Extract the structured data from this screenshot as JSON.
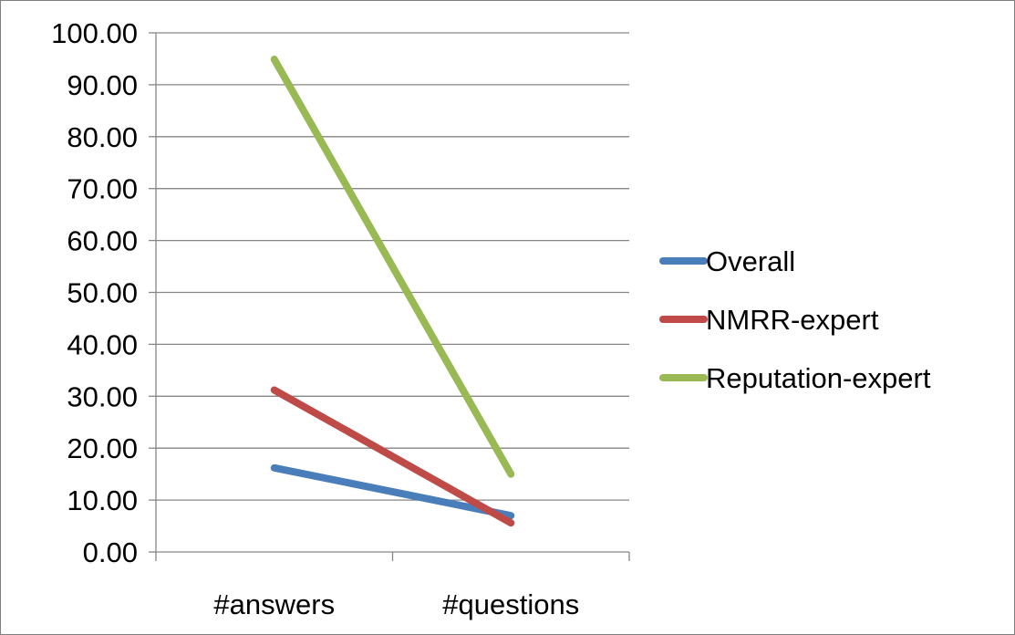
{
  "chart_data": {
    "type": "line",
    "categories": [
      "#answers",
      "#questions"
    ],
    "series": [
      {
        "name": "Overall",
        "values": [
          16.2,
          7.0
        ],
        "color": "#4a7ebb"
      },
      {
        "name": "NMRR-expert",
        "values": [
          31.2,
          5.6
        ],
        "color": "#be4b48"
      },
      {
        "name": "Reputation-expert",
        "values": [
          94.9,
          15.0
        ],
        "color": "#98b954"
      }
    ],
    "ylim": [
      0,
      100
    ],
    "yticks": [
      "0.00",
      "10.00",
      "20.00",
      "30.00",
      "40.00",
      "50.00",
      "60.00",
      "70.00",
      "80.00",
      "90.00",
      "100.00"
    ],
    "grid": true,
    "legend_position": "right"
  }
}
